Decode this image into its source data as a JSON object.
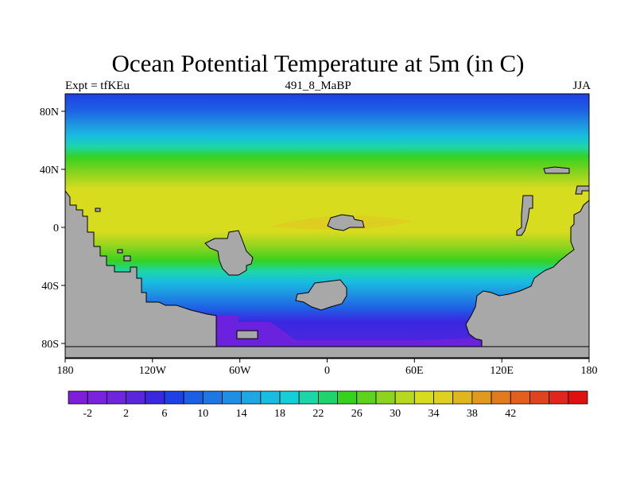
{
  "title": "Ocean Potential Temperature at 5m (in C)",
  "subtitle_left": "Expt = tfKEu",
  "subtitle_center": "491_8_MaBP",
  "subtitle_right": "JJA",
  "map": {
    "lon_ticks": [
      "180",
      "120W",
      "60W",
      "0",
      "60E",
      "120E",
      "180"
    ],
    "lat_ticks": [
      "80N",
      "40N",
      "0",
      "40S",
      "80S"
    ]
  },
  "colorbar": {
    "labels": [
      "-2",
      "2",
      "6",
      "10",
      "14",
      "18",
      "22",
      "26",
      "30",
      "34",
      "38",
      "42"
    ],
    "colors": [
      "#7c1fd6",
      "#7a22de",
      "#6e25dc",
      "#5a26dc",
      "#3a27e0",
      "#1f40e4",
      "#1d5fe4",
      "#1f78e2",
      "#1f8fe2",
      "#1ea7e2",
      "#18bde0",
      "#15cfd8",
      "#1cd6a8",
      "#1fd46c",
      "#37d11f",
      "#5fd21f",
      "#8cd41f",
      "#b6d81f",
      "#d8dc1f",
      "#e0d01f",
      "#e0b61f",
      "#e09a1f",
      "#e07c1f",
      "#e0601f",
      "#e0441f",
      "#e0261f",
      "#e01010"
    ]
  },
  "colors": {
    "land": "#a8a8a8",
    "polar_ocean": "#6a22dc"
  }
}
